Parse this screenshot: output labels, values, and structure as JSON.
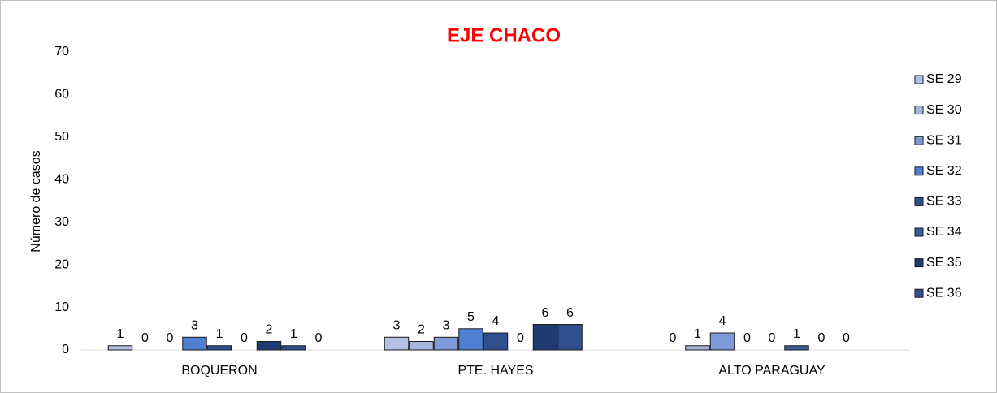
{
  "chart_data": {
    "type": "bar",
    "title": "EJE CHACO",
    "y_label": "Número de casos",
    "categories": [
      "BOQUERON",
      "PTE. HAYES",
      "ALTO PARAGUAY"
    ],
    "series": [
      {
        "name": "SE 29",
        "color": "#b4c0e4",
        "values": [
          1,
          3,
          0
        ]
      },
      {
        "name": "SE 30",
        "color": "#a6b5e0",
        "values": [
          0,
          2,
          1
        ]
      },
      {
        "name": "SE 31",
        "color": "#7f9ad8",
        "values": [
          0,
          3,
          4
        ]
      },
      {
        "name": "SE 32",
        "color": "#4f7fd0",
        "values": [
          3,
          5,
          0
        ]
      },
      {
        "name": "SE 33",
        "color": "#2f4f8f",
        "values": [
          1,
          4,
          0
        ]
      },
      {
        "name": "SE 34",
        "color": "#3a5a9a",
        "values": [
          0,
          0,
          1
        ]
      },
      {
        "name": "SE 35",
        "color": "#1f3a70",
        "values": [
          2,
          6,
          0
        ]
      },
      {
        "name": "SE 36",
        "color": "#2e4e8e",
        "values": [
          1,
          6,
          0
        ]
      },
      {
        "name": null,
        "color": "#2e4e8e",
        "values": [
          0,
          null,
          null
        ]
      }
    ],
    "ylim": [
      0,
      70
    ],
    "yticks": [
      0,
      10,
      20,
      30,
      40,
      50,
      60,
      70
    ],
    "grid": false,
    "legend": "right"
  }
}
